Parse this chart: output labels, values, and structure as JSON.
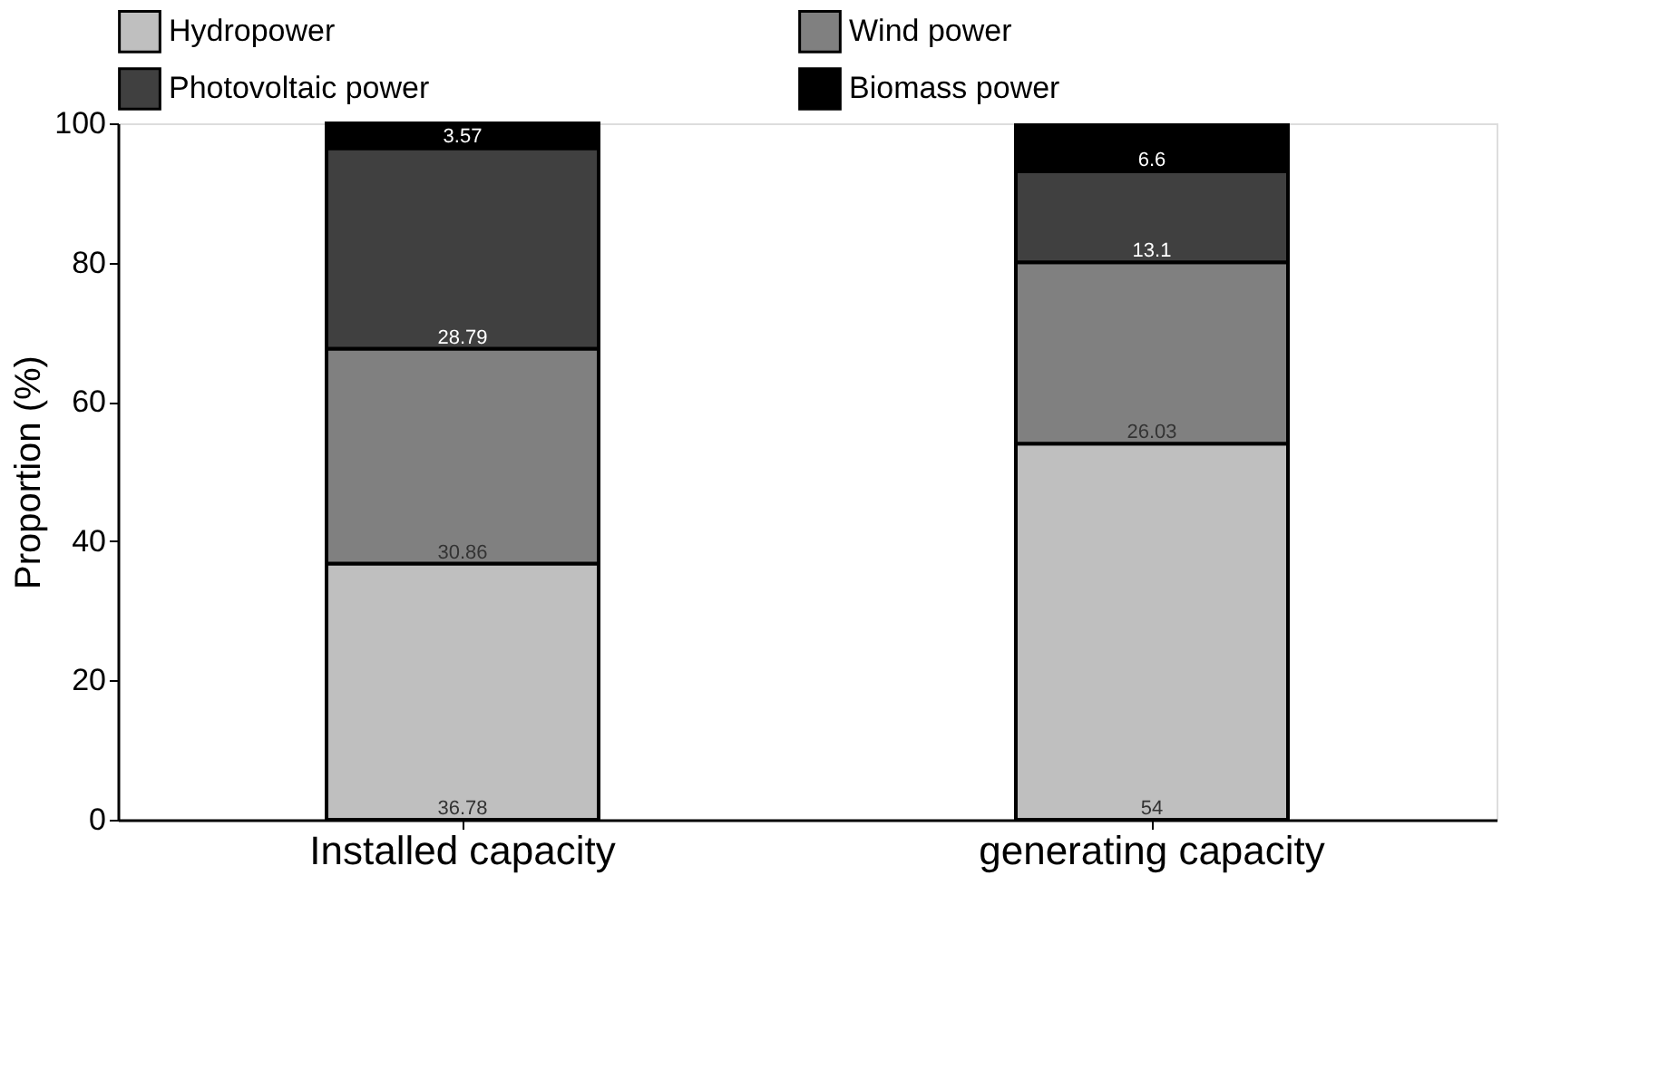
{
  "chart_data": {
    "type": "bar",
    "stacked": true,
    "ylabel": "Proportion (%)",
    "categories": [
      "Installed capacity",
      "generating capacity"
    ],
    "series": [
      {
        "name": "Hydropower",
        "color": "#bfbfbf",
        "values": [
          36.78,
          54
        ]
      },
      {
        "name": "Wind power",
        "color": "#808080",
        "values": [
          30.86,
          26.03
        ]
      },
      {
        "name": "Photovoltaic power",
        "color": "#404040",
        "values": [
          28.79,
          13.1
        ]
      },
      {
        "name": "Biomass power",
        "color": "#000000",
        "values": [
          3.57,
          6.6
        ]
      }
    ],
    "ylim": [
      0,
      100
    ],
    "yticks": [
      0,
      20,
      40,
      60,
      80,
      100
    ],
    "data_labels": true,
    "grid": false,
    "legend": "top"
  }
}
